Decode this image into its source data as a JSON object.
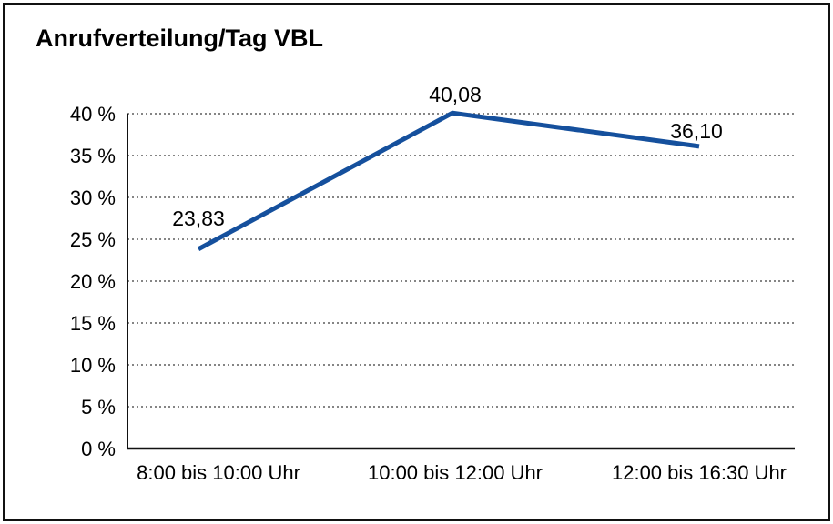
{
  "page": {
    "title": "Anrufverteilung/Tag VBL"
  },
  "chart_data": {
    "type": "line",
    "title": "Anrufverteilung/Tag VBL",
    "categories": [
      "8:00 bis 10:00 Uhr",
      "10:00 bis 12:00 Uhr",
      "12:00 bis 16:30 Uhr"
    ],
    "values": [
      23.83,
      40.08,
      36.1
    ],
    "value_labels": [
      "23,83",
      "40,08",
      "36,10"
    ],
    "series_name": "Anrufverteilung",
    "xlabel": "",
    "ylabel": "",
    "ylim": [
      0,
      40
    ],
    "ytick_step": 5,
    "ytick_suffix": " %",
    "yticks": [
      "0 %",
      "5 %",
      "10 %",
      "15 %",
      "20 %",
      "25 %",
      "30 %",
      "35 %",
      "40 %"
    ],
    "grid": "horizontal-dotted",
    "legend": "none",
    "colors": {
      "line": "#15509d",
      "text": "#000000",
      "axis": "#111111",
      "gridline": "#3c3c3c",
      "background": "#ffffff",
      "border": "#111111"
    }
  }
}
